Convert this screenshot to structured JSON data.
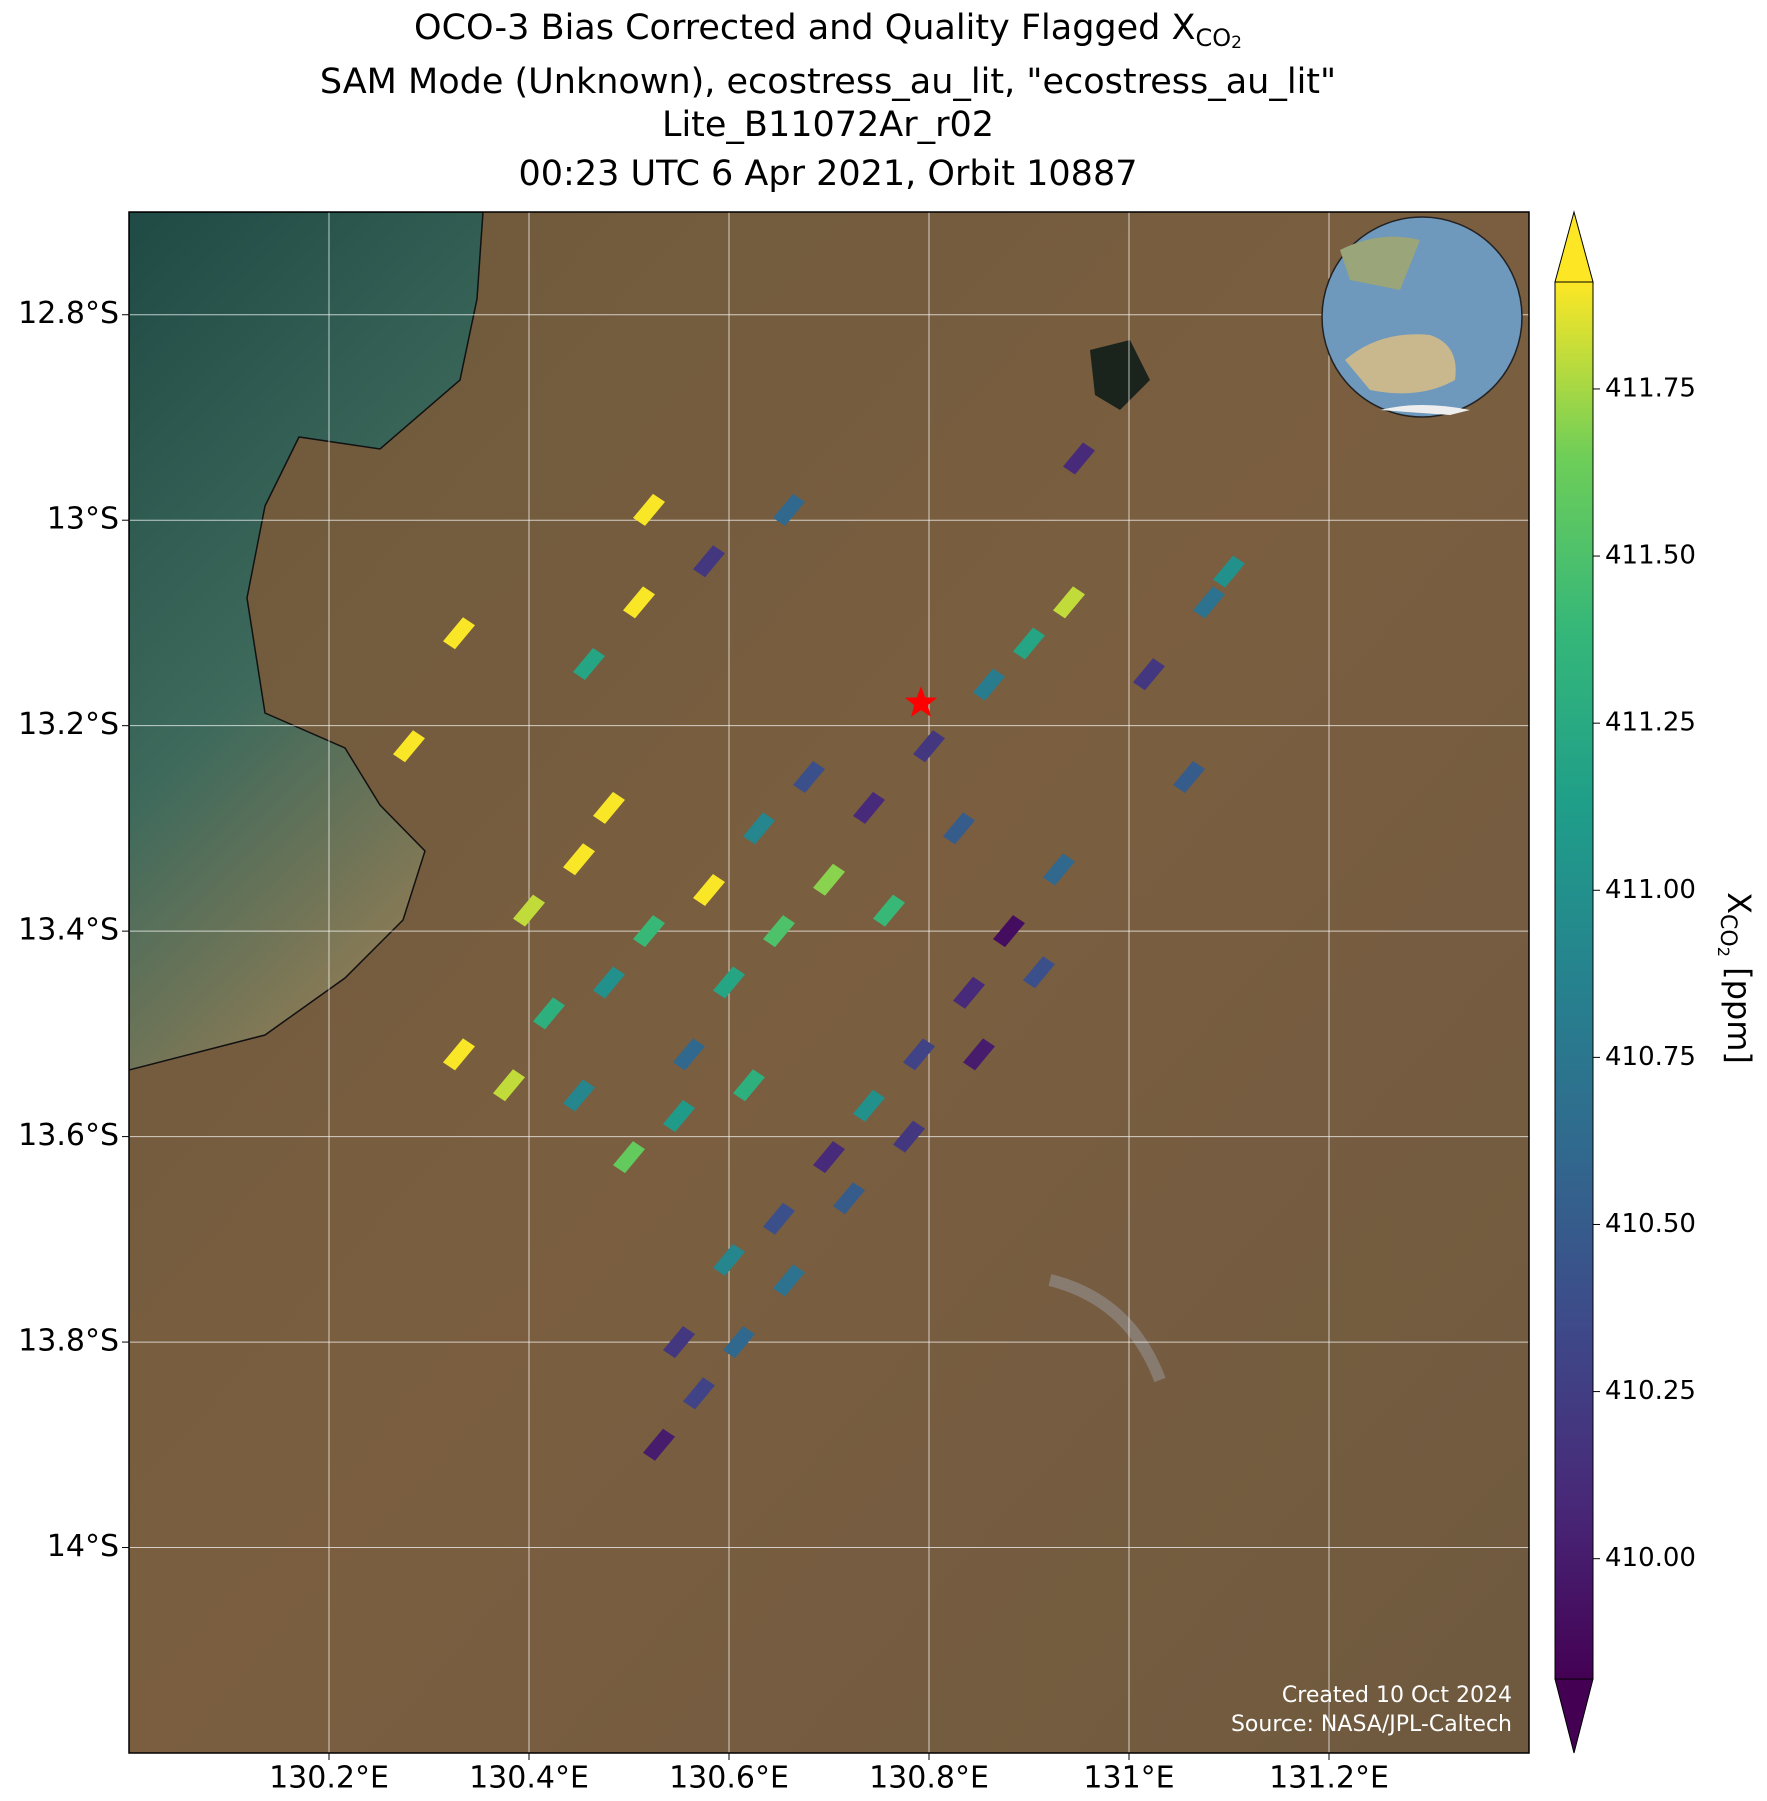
{
  "chart_data": {
    "type": "map",
    "title_lines": [
      {
        "text": "OCO-3 Bias Corrected and Quality Flagged X",
        "sub": "CO",
        "subsub": "2"
      },
      {
        "text": "SAM Mode (Unknown), ecostress_au_lit, \"ecostress_au_lit\""
      },
      {
        "text": "Lite_B11072Ar_r02"
      },
      {
        "text": "00:23 UTC 6 Apr 2021, Orbit 10887"
      }
    ],
    "xlim": [
      130.0,
      131.4
    ],
    "ylim": [
      -14.2,
      -12.7
    ],
    "xticks": [
      {
        "value": 130.2,
        "label": "130.2°E"
      },
      {
        "value": 130.4,
        "label": "130.4°E"
      },
      {
        "value": 130.6,
        "label": "130.6°E"
      },
      {
        "value": 130.8,
        "label": "130.8°E"
      },
      {
        "value": 131.0,
        "label": "131°E"
      },
      {
        "value": 131.2,
        "label": "131.2°E"
      }
    ],
    "yticks": [
      {
        "value": -12.8,
        "label": "12.8°S"
      },
      {
        "value": -13.0,
        "label": "13°S"
      },
      {
        "value": -13.2,
        "label": "13.2°S"
      },
      {
        "value": -13.4,
        "label": "13.4°S"
      },
      {
        "value": -13.6,
        "label": "13.6°S"
      },
      {
        "value": -13.8,
        "label": "13.8°S"
      },
      {
        "value": -14.0,
        "label": "14°S"
      }
    ],
    "grid": true,
    "colormap": "viridis",
    "clim": [
      409.82,
      411.91
    ],
    "cticks": [
      {
        "value": 410.0,
        "label": "410.00"
      },
      {
        "value": 410.25,
        "label": "410.25"
      },
      {
        "value": 410.5,
        "label": "410.50"
      },
      {
        "value": 410.75,
        "label": "410.75"
      },
      {
        "value": 411.0,
        "label": "411.00"
      },
      {
        "value": 411.25,
        "label": "411.25"
      },
      {
        "value": 411.5,
        "label": "411.50"
      },
      {
        "value": 411.75,
        "label": "411.75"
      }
    ],
    "colorbar_label": {
      "text": "X",
      "sub": "CO",
      "subsub": "2",
      "unit": " [ppm]"
    },
    "target": {
      "lon": 130.792,
      "lat": -13.178,
      "color": "#ff0000"
    },
    "soundings": {
      "lon": [
        130.53,
        130.57,
        130.61,
        130.55,
        130.6,
        130.65,
        130.7,
        130.74,
        130.79,
        130.84,
        130.88,
        130.93,
        130.66,
        130.72,
        130.78,
        130.85,
        130.91,
        130.33,
        130.38,
        130.42,
        130.45,
        130.5,
        130.48,
        130.52,
        130.56,
        130.6,
        130.58,
        130.63,
        130.65,
        130.68,
        130.7,
        130.74,
        130.76,
        130.8,
        130.83,
        130.86,
        130.9,
        130.94,
        130.45,
        130.4,
        130.55,
        130.62,
        130.48,
        130.28,
        130.33,
        130.46,
        130.51,
        130.52,
        130.58,
        130.66,
        130.95,
        131.1,
        131.08,
        131.02,
        131.06
      ],
      "lat": [
        -13.9,
        -13.85,
        -13.8,
        -13.8,
        -13.72,
        -13.68,
        -13.62,
        -13.57,
        -13.52,
        -13.46,
        -13.4,
        -13.34,
        -13.74,
        -13.66,
        -13.6,
        -13.52,
        -13.44,
        -13.52,
        -13.55,
        -13.48,
        -13.56,
        -13.62,
        -13.45,
        -13.4,
        -13.52,
        -13.45,
        -13.36,
        -13.3,
        -13.4,
        -13.25,
        -13.35,
        -13.28,
        -13.38,
        -13.22,
        -13.3,
        -13.16,
        -13.12,
        -13.08,
        -13.33,
        -13.38,
        -13.58,
        -13.55,
        -13.28,
        -13.22,
        -13.11,
        -13.14,
        -13.08,
        -12.99,
        -13.04,
        -12.99,
        -12.94,
        -13.05,
        -13.08,
        -13.15,
        -13.25
      ],
      "xco2": [
        410.0,
        410.3,
        410.6,
        410.2,
        410.9,
        410.4,
        410.1,
        411.0,
        410.3,
        410.1,
        409.9,
        410.6,
        410.7,
        410.5,
        410.2,
        410.0,
        410.4,
        411.9,
        411.8,
        411.3,
        410.9,
        411.6,
        411.0,
        411.4,
        410.6,
        411.2,
        411.9,
        410.9,
        411.5,
        410.4,
        411.7,
        410.1,
        411.4,
        410.2,
        410.5,
        410.8,
        411.2,
        411.8,
        411.9,
        411.8,
        411.1,
        411.3,
        411.9,
        411.9,
        411.9,
        411.2,
        411.9,
        411.9,
        410.2,
        410.6,
        410.1,
        411.0,
        410.7,
        410.2,
        410.5
      ]
    },
    "credits": [
      "Created 10 Oct 2024",
      "Source: NASA/JPL-Caltech"
    ]
  }
}
